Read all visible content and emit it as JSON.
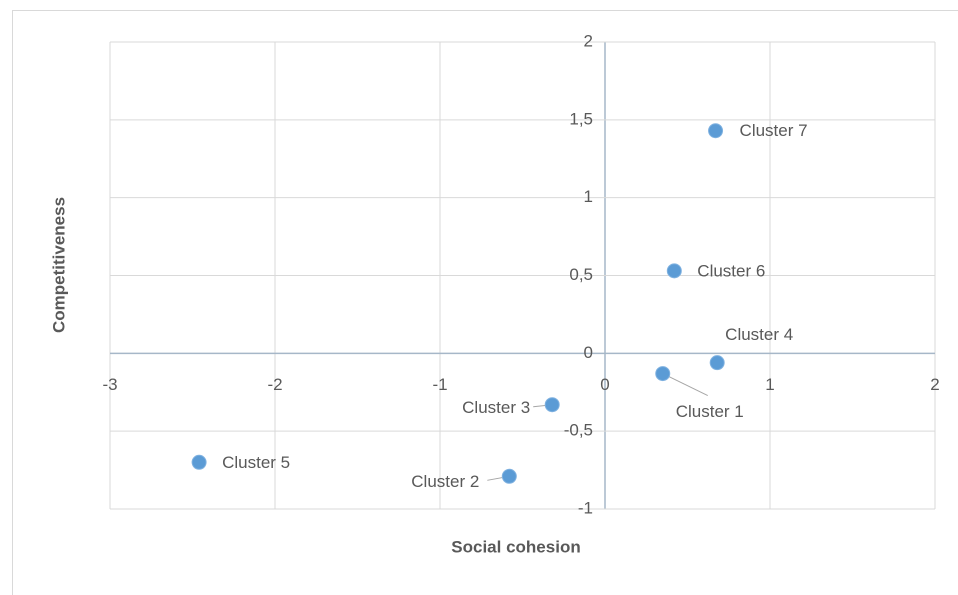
{
  "chart_data": {
    "type": "scatter",
    "x_label": "Social cohesion",
    "y_label": "Competitiveness",
    "series": [
      {
        "color": "#5b9bd5",
        "x": [
          0.35,
          -0.58,
          -0.32,
          0.68,
          -2.46,
          0.42,
          0.67
        ],
        "values": [
          -0.13,
          -0.79,
          -0.33,
          -0.06,
          -0.7,
          0.53,
          1.43
        ],
        "point_labels": [
          "Cluster 1",
          "Cluster 2",
          "Cluster 3",
          "Cluster 4",
          "Cluster 5",
          "Cluster 6",
          "Cluster 7"
        ]
      }
    ],
    "xlim": [
      -3,
      2
    ],
    "xticks": [
      -3,
      -2,
      -1,
      0,
      1,
      2
    ],
    "ylim": [
      -1,
      2
    ],
    "yticks": [
      -1,
      {
        "value": -0.5,
        "label": "-0,5"
      },
      0,
      {
        "value": 0.5,
        "label": "0,5"
      },
      1,
      {
        "value": 1.5,
        "label": "1,5"
      },
      2
    ],
    "grid": true
  }
}
